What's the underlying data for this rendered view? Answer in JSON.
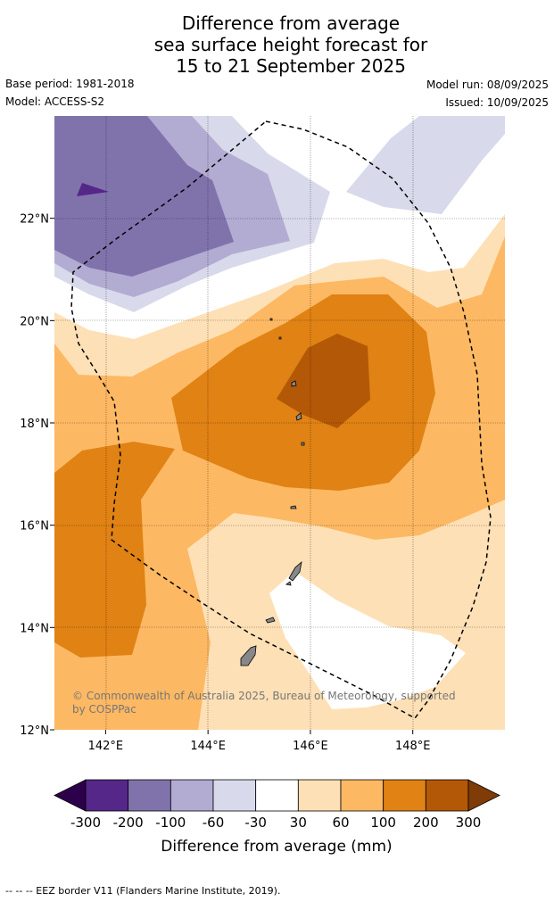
{
  "title": {
    "line1": "Difference from average",
    "line2": "sea surface height forecast for",
    "line3": "15 to 21 September 2025"
  },
  "meta": {
    "base_period": "Base period: 1981-2018",
    "model": "Model: ACCESS-S2",
    "model_run": "Model run: 08/09/2025",
    "issued": "Issued: 10/09/2025"
  },
  "map": {
    "lon_range": [
      141.0,
      149.8
    ],
    "lat_range": [
      12.0,
      24.0
    ],
    "x_ticks": [
      {
        "value": 142,
        "label": "142°E"
      },
      {
        "value": 144,
        "label": "144°E"
      },
      {
        "value": 146,
        "label": "146°E"
      },
      {
        "value": 148,
        "label": "148°E"
      }
    ],
    "y_ticks": [
      {
        "value": 12,
        "label": "12°N"
      },
      {
        "value": 14,
        "label": "14°N"
      },
      {
        "value": 16,
        "label": "16°N"
      },
      {
        "value": 18,
        "label": "18°N"
      },
      {
        "value": 20,
        "label": "20°N"
      },
      {
        "value": 22,
        "label": "22°N"
      }
    ],
    "copyright_line1": "© Commonwealth of Australia 2025, Bureau of Meteorology, supported",
    "copyright_line2": "by COSPPac"
  },
  "colorbar": {
    "labels": [
      "-300",
      "-200",
      "-100",
      "-60",
      "-30",
      "30",
      "60",
      "100",
      "200",
      "300"
    ],
    "colors": [
      "#2d004b",
      "#542788",
      "#8073ac",
      "#b2abd2",
      "#d8daeb",
      "#ffffff",
      "#fee0b6",
      "#fdb863",
      "#e08214",
      "#b35806",
      "#7f3b08"
    ],
    "title": "Difference from average (mm)"
  },
  "footer": "-- -- -- EEZ border V11 (Flanders Marine Institute, 2019)."
}
